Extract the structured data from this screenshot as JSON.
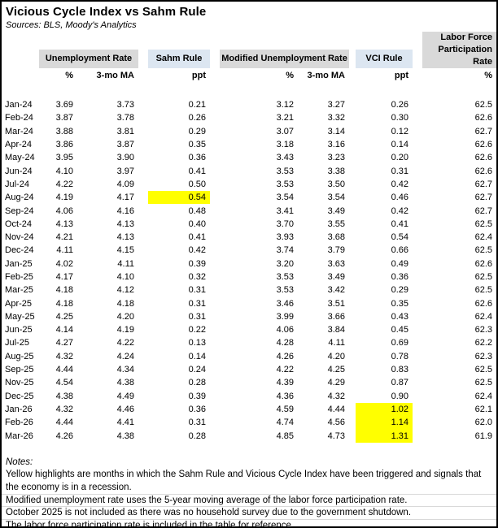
{
  "title": "Vicious Cycle Index vs Sahm Rule",
  "sources": "Sources: BLS, Moody's Analytics",
  "colors": {
    "header_gray": "#d9d9d9",
    "header_blue": "#dce6f1",
    "highlight_yellow": "#ffff00",
    "gridline_gray": "#d9d9d9"
  },
  "table": {
    "group_headers": {
      "unemployment_rate": "Unemployment Rate",
      "sahm_rule": "Sahm Rule",
      "modified_unemployment_rate": "Modified Unemployment Rate",
      "vci_rule": "VCI Rule",
      "labor_force_participation_rate": "Labor Force Participation Rate"
    },
    "sub_headers": [
      "%",
      "3-mo MA",
      "ppt",
      "%",
      "3-mo MA",
      "ppt",
      "%"
    ],
    "rows": [
      {
        "month": "Jan-24",
        "ur": "3.69",
        "ur_ma": "3.73",
        "sahm": "0.21",
        "mur": "3.12",
        "mur_ma": "3.27",
        "vci": "0.26",
        "lfpr": "62.5"
      },
      {
        "month": "Feb-24",
        "ur": "3.87",
        "ur_ma": "3.78",
        "sahm": "0.26",
        "mur": "3.21",
        "mur_ma": "3.32",
        "vci": "0.30",
        "lfpr": "62.6"
      },
      {
        "month": "Mar-24",
        "ur": "3.88",
        "ur_ma": "3.81",
        "sahm": "0.29",
        "mur": "3.07",
        "mur_ma": "3.14",
        "vci": "0.12",
        "lfpr": "62.7"
      },
      {
        "month": "Apr-24",
        "ur": "3.86",
        "ur_ma": "3.87",
        "sahm": "0.35",
        "mur": "3.18",
        "mur_ma": "3.16",
        "vci": "0.14",
        "lfpr": "62.6"
      },
      {
        "month": "May-24",
        "ur": "3.95",
        "ur_ma": "3.90",
        "sahm": "0.36",
        "mur": "3.43",
        "mur_ma": "3.23",
        "vci": "0.20",
        "lfpr": "62.6"
      },
      {
        "month": "Jun-24",
        "ur": "4.10",
        "ur_ma": "3.97",
        "sahm": "0.41",
        "mur": "3.53",
        "mur_ma": "3.38",
        "vci": "0.31",
        "lfpr": "62.6"
      },
      {
        "month": "Jul-24",
        "ur": "4.22",
        "ur_ma": "4.09",
        "sahm": "0.50",
        "mur": "3.53",
        "mur_ma": "3.50",
        "vci": "0.42",
        "lfpr": "62.7"
      },
      {
        "month": "Aug-24",
        "ur": "4.19",
        "ur_ma": "4.17",
        "sahm": "0.54",
        "mur": "3.54",
        "mur_ma": "3.54",
        "vci": "0.46",
        "lfpr": "62.7"
      },
      {
        "month": "Sep-24",
        "ur": "4.06",
        "ur_ma": "4.16",
        "sahm": "0.48",
        "mur": "3.41",
        "mur_ma": "3.49",
        "vci": "0.42",
        "lfpr": "62.7"
      },
      {
        "month": "Oct-24",
        "ur": "4.13",
        "ur_ma": "4.13",
        "sahm": "0.40",
        "mur": "3.70",
        "mur_ma": "3.55",
        "vci": "0.41",
        "lfpr": "62.5"
      },
      {
        "month": "Nov-24",
        "ur": "4.21",
        "ur_ma": "4.13",
        "sahm": "0.41",
        "mur": "3.93",
        "mur_ma": "3.68",
        "vci": "0.54",
        "lfpr": "62.4"
      },
      {
        "month": "Dec-24",
        "ur": "4.11",
        "ur_ma": "4.15",
        "sahm": "0.42",
        "mur": "3.74",
        "mur_ma": "3.79",
        "vci": "0.66",
        "lfpr": "62.5"
      },
      {
        "month": "Jan-25",
        "ur": "4.02",
        "ur_ma": "4.11",
        "sahm": "0.39",
        "mur": "3.20",
        "mur_ma": "3.63",
        "vci": "0.49",
        "lfpr": "62.6"
      },
      {
        "month": "Feb-25",
        "ur": "4.17",
        "ur_ma": "4.10",
        "sahm": "0.32",
        "mur": "3.53",
        "mur_ma": "3.49",
        "vci": "0.36",
        "lfpr": "62.5"
      },
      {
        "month": "Mar-25",
        "ur": "4.18",
        "ur_ma": "4.12",
        "sahm": "0.31",
        "mur": "3.53",
        "mur_ma": "3.42",
        "vci": "0.29",
        "lfpr": "62.5"
      },
      {
        "month": "Apr-25",
        "ur": "4.18",
        "ur_ma": "4.18",
        "sahm": "0.31",
        "mur": "3.46",
        "mur_ma": "3.51",
        "vci": "0.35",
        "lfpr": "62.6"
      },
      {
        "month": "May-25",
        "ur": "4.25",
        "ur_ma": "4.20",
        "sahm": "0.31",
        "mur": "3.99",
        "mur_ma": "3.66",
        "vci": "0.43",
        "lfpr": "62.4"
      },
      {
        "month": "Jun-25",
        "ur": "4.14",
        "ur_ma": "4.19",
        "sahm": "0.22",
        "mur": "4.06",
        "mur_ma": "3.84",
        "vci": "0.45",
        "lfpr": "62.3"
      },
      {
        "month": "Jul-25",
        "ur": "4.27",
        "ur_ma": "4.22",
        "sahm": "0.13",
        "mur": "4.28",
        "mur_ma": "4.11",
        "vci": "0.69",
        "lfpr": "62.2"
      },
      {
        "month": "Aug-25",
        "ur": "4.32",
        "ur_ma": "4.24",
        "sahm": "0.14",
        "mur": "4.26",
        "mur_ma": "4.20",
        "vci": "0.78",
        "lfpr": "62.3"
      },
      {
        "month": "Sep-25",
        "ur": "4.44",
        "ur_ma": "4.34",
        "sahm": "0.24",
        "mur": "4.22",
        "mur_ma": "4.25",
        "vci": "0.83",
        "lfpr": "62.5"
      },
      {
        "month": "Nov-25",
        "ur": "4.54",
        "ur_ma": "4.38",
        "sahm": "0.28",
        "mur": "4.39",
        "mur_ma": "4.29",
        "vci": "0.87",
        "lfpr": "62.5"
      },
      {
        "month": "Dec-25",
        "ur": "4.38",
        "ur_ma": "4.49",
        "sahm": "0.39",
        "mur": "4.36",
        "mur_ma": "4.32",
        "vci": "0.90",
        "lfpr": "62.4"
      },
      {
        "month": "Jan-26",
        "ur": "4.32",
        "ur_ma": "4.46",
        "sahm": "0.36",
        "mur": "4.59",
        "mur_ma": "4.44",
        "vci": "1.02",
        "lfpr": "62.1"
      },
      {
        "month": "Feb-26",
        "ur": "4.44",
        "ur_ma": "4.41",
        "sahm": "0.31",
        "mur": "4.74",
        "mur_ma": "4.56",
        "vci": "1.14",
        "lfpr": "62.0"
      },
      {
        "month": "Mar-26",
        "ur": "4.26",
        "ur_ma": "4.38",
        "sahm": "0.28",
        "mur": "4.85",
        "mur_ma": "4.73",
        "vci": "1.31",
        "lfpr": "61.9"
      }
    ],
    "highlights": {
      "sahm": [
        "Aug-24"
      ],
      "vci": [
        "Jan-26",
        "Feb-26",
        "Mar-26"
      ]
    }
  },
  "notes": {
    "lines": [
      "Notes:",
      "Yellow highlights are months in which the Sahm Rule and Vicious Cycle Index have been triggered and signals that",
      "the economy is in a recession.",
      "Modified unemployment rate uses the 5-year moving average of the labor force participation rate.",
      "October 2025 is not included as there was no household survey due to the government shutdown.",
      "The labor force participation rate is included in the table for reference."
    ]
  }
}
